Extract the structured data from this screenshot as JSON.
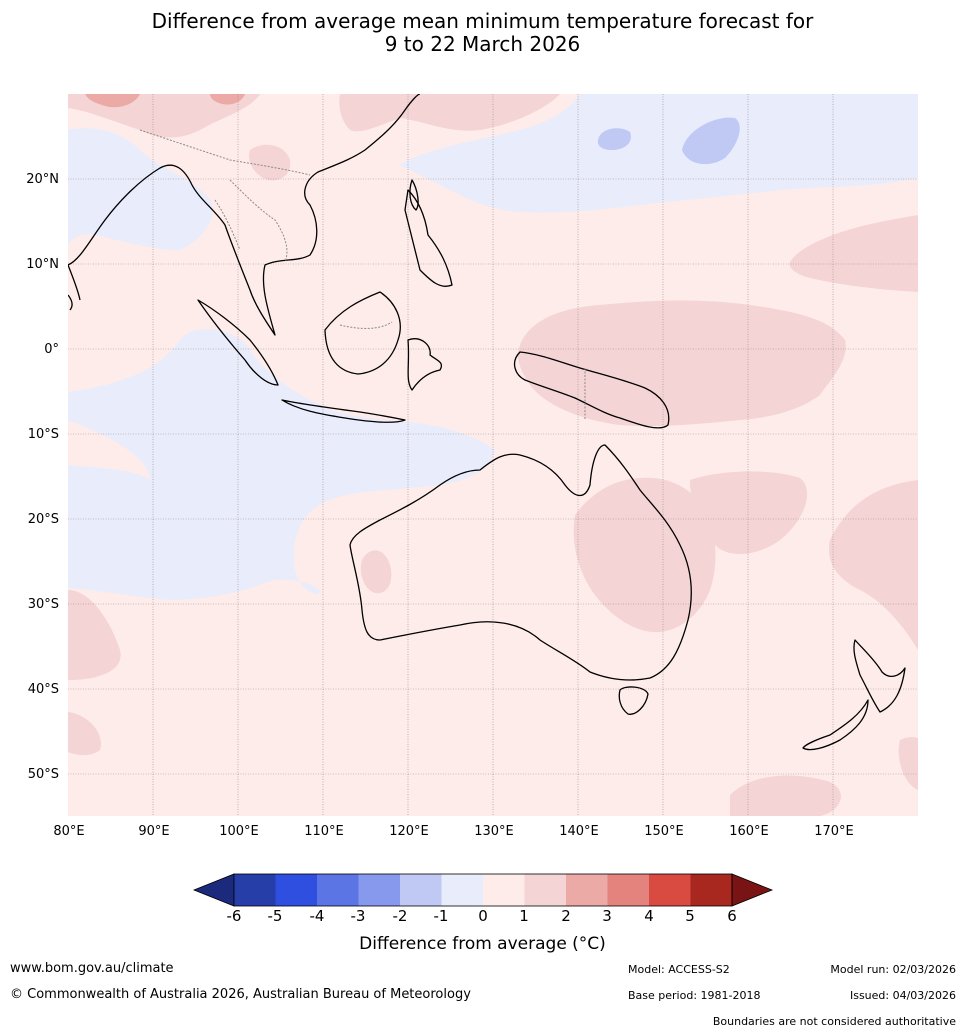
{
  "title": {
    "line1": "Difference from average mean minimum temperature forecast for",
    "line2": "9 to 22 March 2026"
  },
  "map": {
    "lon_labels": [
      "80°E",
      "90°E",
      "100°E",
      "110°E",
      "120°E",
      "130°E",
      "140°E",
      "150°E",
      "160°E",
      "170°E"
    ],
    "lat_labels": [
      "20°N",
      "10°N",
      "0°",
      "10°S",
      "20°S",
      "30°S",
      "40°S",
      "50°S"
    ],
    "lon_range": [
      80,
      180
    ],
    "lat_range": [
      -55,
      30
    ],
    "colors": {
      "ocean_positive_0_1": "#fdecea",
      "negative_m1_0": "#e8ecfb",
      "positive_1_2": "#f4d4d4",
      "positive_2_3": "#ebaaa6",
      "negative_m2_m1": "#c0c9f4",
      "coast": "#000000",
      "border": "#8a8a8a",
      "grid": "#9a8a8a"
    }
  },
  "colorbar": {
    "title": "Difference from average (°C)",
    "ticks": [
      "-6",
      "-5",
      "-4",
      "-3",
      "-2",
      "-1",
      "0",
      "1",
      "2",
      "3",
      "4",
      "5",
      "6"
    ],
    "colors": [
      "#1c2a7e",
      "#263ea8",
      "#2f4fe0",
      "#5b75e4",
      "#8799ec",
      "#c0c9f4",
      "#e8ecfb",
      "#fdecea",
      "#f4d4d4",
      "#ebaaa6",
      "#e4837d",
      "#d94a40",
      "#a82820",
      "#7a1414"
    ]
  },
  "footer": {
    "website": "www.bom.gov.au/climate",
    "copyright": "© Commonwealth of Australia 2026, Australian Bureau of Meteorology",
    "model": "Model: ACCESS-S2",
    "base_period": "Base period: 1981-2018",
    "model_run": "Model run: 02/03/2026",
    "issued": "Issued: 04/03/2026",
    "disclaimer": "Boundaries are not considered authoritative"
  }
}
